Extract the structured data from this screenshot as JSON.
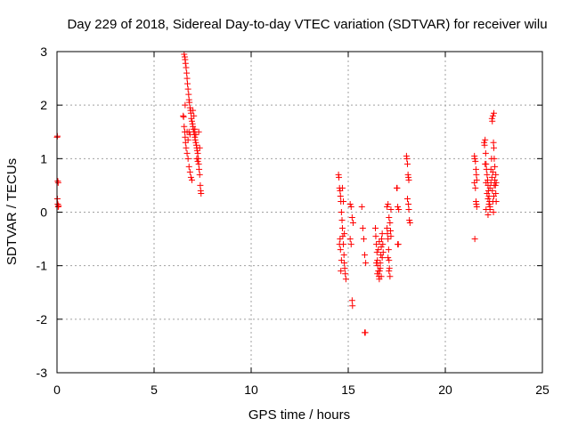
{
  "chart_data": {
    "type": "scatter",
    "title": "Day 229 of 2018, Sidereal Day-to-day VTEC variation (SDTVAR) for receiver wilu",
    "xlabel": "GPS time / hours",
    "ylabel": "SDTVAR / TECUs",
    "xlim": [
      0,
      25
    ],
    "ylim": [
      -3,
      3
    ],
    "xticks": [
      0,
      5,
      10,
      15,
      20,
      25
    ],
    "yticks": [
      -3,
      -2,
      -1,
      0,
      1,
      2,
      3
    ],
    "xtick_labels": [
      "0",
      "5",
      "10",
      "15",
      "20",
      "25"
    ],
    "ytick_labels": [
      "-3",
      "-2",
      "-1",
      "0",
      "1",
      "2",
      "3"
    ],
    "grid": true,
    "marker": "+",
    "series": [
      {
        "name": "SDTVAR",
        "color": "#ff0000",
        "points": [
          [
            0.0,
            1.4
          ],
          [
            0.02,
            1.42
          ],
          [
            0.04,
            0.58
          ],
          [
            0.06,
            0.55
          ],
          [
            0.02,
            0.25
          ],
          [
            0.04,
            0.15
          ],
          [
            0.06,
            0.1
          ],
          [
            0.08,
            0.12
          ],
          [
            6.5,
            1.8
          ],
          [
            6.52,
            1.78
          ],
          [
            6.55,
            2.95
          ],
          [
            6.58,
            2.9
          ],
          [
            6.6,
            2.85
          ],
          [
            6.62,
            2.78
          ],
          [
            6.65,
            2.7
          ],
          [
            6.68,
            2.6
          ],
          [
            6.7,
            2.5
          ],
          [
            6.72,
            2.4
          ],
          [
            6.75,
            2.3
          ],
          [
            6.78,
            2.2
          ],
          [
            6.8,
            2.1
          ],
          [
            6.82,
            2.05
          ],
          [
            6.85,
            1.95
          ],
          [
            6.88,
            1.9
          ],
          [
            6.9,
            1.85
          ],
          [
            6.92,
            1.75
          ],
          [
            6.95,
            1.7
          ],
          [
            6.98,
            1.65
          ],
          [
            7.0,
            1.6
          ],
          [
            7.02,
            1.55
          ],
          [
            7.05,
            1.5
          ],
          [
            7.08,
            1.45
          ],
          [
            7.1,
            1.4
          ],
          [
            7.12,
            1.35
          ],
          [
            7.15,
            1.3
          ],
          [
            7.18,
            1.25
          ],
          [
            7.2,
            1.2
          ],
          [
            7.22,
            1.15
          ],
          [
            7.25,
            1.1
          ],
          [
            7.28,
            1.0
          ],
          [
            7.3,
            0.9
          ],
          [
            7.32,
            0.8
          ],
          [
            7.35,
            0.7
          ],
          [
            7.38,
            0.5
          ],
          [
            7.4,
            0.4
          ],
          [
            7.42,
            0.35
          ],
          [
            6.6,
            1.4
          ],
          [
            6.62,
            1.3
          ],
          [
            6.65,
            1.2
          ],
          [
            6.7,
            1.1
          ],
          [
            6.75,
            1.0
          ],
          [
            6.8,
            0.85
          ],
          [
            6.85,
            0.75
          ],
          [
            6.9,
            0.65
          ],
          [
            6.95,
            0.6
          ],
          [
            7.0,
            1.9
          ],
          [
            7.05,
            1.8
          ],
          [
            7.1,
            1.55
          ],
          [
            7.15,
            1.45
          ],
          [
            7.2,
            1.0
          ],
          [
            7.25,
            0.95
          ],
          [
            7.3,
            1.5
          ],
          [
            7.35,
            1.2
          ],
          [
            6.55,
            1.6
          ],
          [
            6.58,
            1.5
          ],
          [
            6.6,
            2.0
          ],
          [
            6.7,
            1.5
          ],
          [
            6.75,
            1.35
          ],
          [
            6.8,
            1.5
          ],
          [
            6.85,
            1.45
          ],
          [
            14.5,
            0.7
          ],
          [
            14.52,
            0.65
          ],
          [
            14.55,
            0.45
          ],
          [
            14.58,
            0.4
          ],
          [
            14.6,
            0.3
          ],
          [
            14.62,
            0.2
          ],
          [
            14.65,
            0.0
          ],
          [
            14.68,
            -0.15
          ],
          [
            14.7,
            -0.3
          ],
          [
            14.72,
            -0.45
          ],
          [
            14.75,
            -0.6
          ],
          [
            14.78,
            -0.8
          ],
          [
            14.8,
            -0.95
          ],
          [
            14.82,
            -1.05
          ],
          [
            14.85,
            -1.15
          ],
          [
            14.88,
            -1.25
          ],
          [
            14.55,
            -0.6
          ],
          [
            14.6,
            -0.7
          ],
          [
            14.65,
            -0.9
          ],
          [
            14.7,
            0.45
          ],
          [
            14.75,
            0.2
          ],
          [
            14.8,
            -0.4
          ],
          [
            14.62,
            -1.1
          ],
          [
            14.58,
            -0.5
          ],
          [
            15.1,
            0.15
          ],
          [
            15.15,
            0.1
          ],
          [
            15.2,
            -0.1
          ],
          [
            15.25,
            -0.2
          ],
          [
            15.1,
            -0.5
          ],
          [
            15.15,
            -0.6
          ],
          [
            15.2,
            -1.65
          ],
          [
            15.22,
            -1.75
          ],
          [
            15.7,
            0.1
          ],
          [
            15.75,
            -0.3
          ],
          [
            15.8,
            -0.5
          ],
          [
            15.85,
            -0.8
          ],
          [
            15.9,
            -0.95
          ],
          [
            15.85,
            -2.25
          ],
          [
            15.88,
            -2.25
          ],
          [
            16.4,
            -0.3
          ],
          [
            16.42,
            -0.45
          ],
          [
            16.45,
            -0.6
          ],
          [
            16.48,
            -0.75
          ],
          [
            16.5,
            -0.9
          ],
          [
            16.52,
            -1.0
          ],
          [
            16.55,
            -1.1
          ],
          [
            16.58,
            -1.2
          ],
          [
            16.6,
            -1.25
          ],
          [
            16.62,
            -1.1
          ],
          [
            16.65,
            -0.95
          ],
          [
            16.68,
            -0.8
          ],
          [
            16.7,
            -0.65
          ],
          [
            16.72,
            -0.5
          ],
          [
            16.75,
            -0.4
          ],
          [
            16.78,
            -0.6
          ],
          [
            16.8,
            -0.75
          ],
          [
            16.45,
            -0.95
          ],
          [
            16.5,
            -1.15
          ],
          [
            16.55,
            -0.7
          ],
          [
            16.6,
            -0.55
          ],
          [
            16.65,
            -1.05
          ],
          [
            16.7,
            -1.2
          ],
          [
            16.75,
            -0.85
          ],
          [
            17.0,
            -0.3
          ],
          [
            17.02,
            -0.4
          ],
          [
            17.05,
            -0.5
          ],
          [
            17.08,
            -0.7
          ],
          [
            17.1,
            -0.9
          ],
          [
            17.12,
            -1.05
          ],
          [
            17.15,
            -1.2
          ],
          [
            17.0,
            0.1
          ],
          [
            17.05,
            0.15
          ],
          [
            17.1,
            -0.1
          ],
          [
            17.15,
            -0.2
          ],
          [
            17.18,
            -0.35
          ],
          [
            17.2,
            -0.45
          ],
          [
            17.05,
            -0.85
          ],
          [
            17.1,
            -1.1
          ],
          [
            17.2,
            0.05
          ],
          [
            17.5,
            0.45
          ],
          [
            17.52,
            0.45
          ],
          [
            17.55,
            -0.6
          ],
          [
            17.58,
            -0.6
          ],
          [
            17.55,
            0.1
          ],
          [
            17.6,
            0.05
          ],
          [
            18.0,
            1.05
          ],
          [
            18.02,
            1.0
          ],
          [
            18.05,
            0.9
          ],
          [
            18.08,
            0.7
          ],
          [
            18.1,
            0.65
          ],
          [
            18.12,
            0.6
          ],
          [
            18.05,
            0.25
          ],
          [
            18.1,
            0.15
          ],
          [
            18.12,
            0.05
          ],
          [
            18.15,
            -0.15
          ],
          [
            18.18,
            -0.2
          ],
          [
            21.5,
            1.05
          ],
          [
            21.52,
            1.0
          ],
          [
            21.55,
            0.95
          ],
          [
            21.58,
            0.8
          ],
          [
            21.6,
            0.7
          ],
          [
            21.62,
            0.6
          ],
          [
            21.5,
            0.55
          ],
          [
            21.55,
            0.45
          ],
          [
            21.6,
            0.15
          ],
          [
            21.62,
            0.1
          ],
          [
            21.58,
            0.2
          ],
          [
            21.52,
            -0.5
          ],
          [
            22.0,
            1.3
          ],
          [
            22.02,
            1.25
          ],
          [
            22.05,
            1.35
          ],
          [
            22.08,
            1.1
          ],
          [
            22.1,
            0.9
          ],
          [
            22.12,
            0.8
          ],
          [
            22.15,
            0.7
          ],
          [
            22.18,
            0.6
          ],
          [
            22.2,
            0.5
          ],
          [
            22.22,
            0.4
          ],
          [
            22.25,
            0.3
          ],
          [
            22.28,
            0.2
          ],
          [
            22.3,
            0.1
          ],
          [
            22.05,
            0.9
          ],
          [
            22.1,
            0.55
          ],
          [
            22.15,
            0.35
          ],
          [
            22.2,
            0.25
          ],
          [
            22.25,
            0.15
          ],
          [
            22.3,
            0.45
          ],
          [
            22.35,
            0.8
          ],
          [
            22.38,
            1.0
          ],
          [
            22.4,
            0.65
          ],
          [
            22.42,
            0.4
          ],
          [
            22.45,
            0.2
          ],
          [
            22.48,
            0.0
          ],
          [
            22.5,
            0.3
          ],
          [
            22.52,
            0.5
          ],
          [
            22.55,
            0.6
          ],
          [
            22.4,
            1.75
          ],
          [
            22.42,
            1.7
          ],
          [
            22.45,
            1.8
          ],
          [
            22.5,
            1.85
          ],
          [
            22.48,
            1.3
          ],
          [
            22.5,
            1.2
          ],
          [
            22.52,
            1.0
          ],
          [
            22.55,
            0.85
          ],
          [
            22.6,
            0.7
          ],
          [
            22.58,
            0.5
          ],
          [
            22.6,
            0.35
          ],
          [
            22.62,
            0.2
          ],
          [
            22.62,
            0.55
          ],
          [
            22.1,
            0.05
          ],
          [
            22.2,
            -0.05
          ],
          [
            22.3,
            0.05
          ],
          [
            22.35,
            0.55
          ],
          [
            22.45,
            0.75
          ]
        ]
      }
    ]
  }
}
